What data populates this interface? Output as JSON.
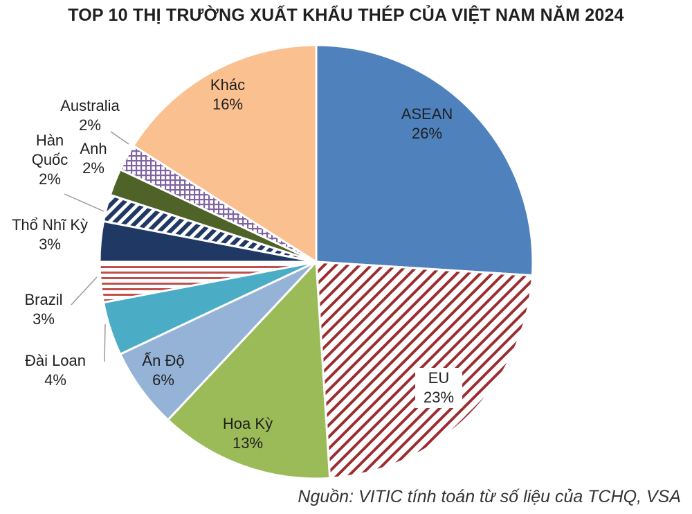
{
  "chart_data": {
    "type": "pie",
    "title": "TOP 10 THỊ TRƯỜNG XUẤT KHẨU THÉP CỦA VIỆT NAM NĂM 2024",
    "slices": [
      {
        "name": "ASEAN",
        "value": 26,
        "label": "26%",
        "color": "#4f81bd",
        "pattern": "solid"
      },
      {
        "name": "EU",
        "value": 23,
        "label": "23%",
        "color": "#9b2d30",
        "pattern": "diagonal"
      },
      {
        "name": "Hoa Kỳ",
        "value": 13,
        "label": "13%",
        "color": "#9bbb59",
        "pattern": "solid"
      },
      {
        "name": "Ấn Độ",
        "value": 6,
        "label": "6%",
        "color": "#95b3d7",
        "pattern": "solid"
      },
      {
        "name": "Đài Loan",
        "value": 4,
        "label": "4%",
        "color": "#4bacc6",
        "pattern": "solid"
      },
      {
        "name": "Brazil",
        "value": 3,
        "label": "3%",
        "color": "#c0504d",
        "pattern": "horizontal"
      },
      {
        "name": "Thổ Nhĩ Kỳ",
        "value": 3,
        "label": "3%",
        "color": "#1f3864",
        "pattern": "solid"
      },
      {
        "name": "Hàn Quốc",
        "value": 2,
        "label": "2%",
        "color": "#1f3864",
        "pattern": "diagonal-bold"
      },
      {
        "name": "Anh",
        "value": 2,
        "label": "2%",
        "color": "#4f6228",
        "pattern": "solid"
      },
      {
        "name": "Australia",
        "value": 2,
        "label": "2%",
        "color": "#8064a2",
        "pattern": "crosshatch"
      },
      {
        "name": "Khác",
        "value": 16,
        "label": "16%",
        "color": "#fac090",
        "pattern": "solid"
      }
    ]
  },
  "source": "Nguồn: VITIC tính toán từ số liệu của TCHQ, VSA"
}
